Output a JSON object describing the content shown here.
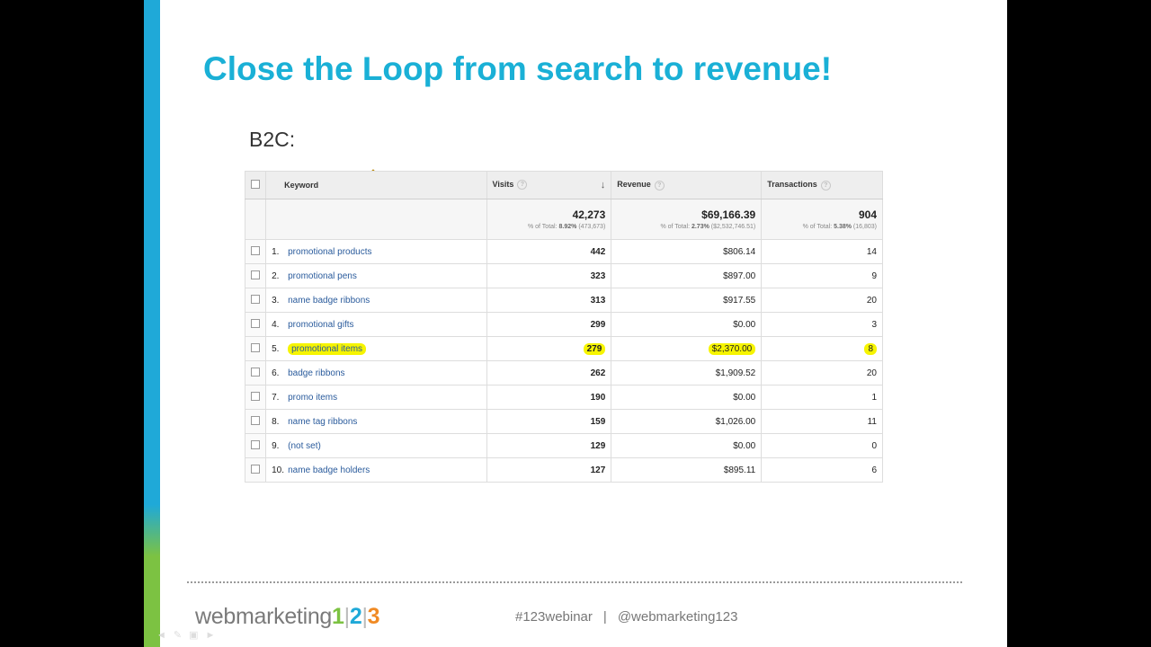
{
  "slide": {
    "title": "Close the Loop from search to revenue!",
    "subhead": "B2C:"
  },
  "table": {
    "headers": {
      "keyword": "Keyword",
      "visits": "Visits",
      "revenue": "Revenue",
      "transactions": "Transactions"
    },
    "totals": {
      "visits": "42,273",
      "visits_pct_label": "% of Total:",
      "visits_pct": "8.92%",
      "visits_of": "(473,673)",
      "revenue": "$69,166.39",
      "revenue_pct_label": "% of Total:",
      "revenue_pct": "2.73%",
      "revenue_of": "($2,532,746.51)",
      "transactions": "904",
      "transactions_pct_label": "% of Total:",
      "transactions_pct": "5.38%",
      "transactions_of": "(16,803)"
    },
    "rows": [
      {
        "idx": "1.",
        "keyword": "promotional products",
        "visits": "442",
        "revenue": "$806.14",
        "transactions": "14",
        "highlight": false
      },
      {
        "idx": "2.",
        "keyword": "promotional pens",
        "visits": "323",
        "revenue": "$897.00",
        "transactions": "9",
        "highlight": false
      },
      {
        "idx": "3.",
        "keyword": "name badge ribbons",
        "visits": "313",
        "revenue": "$917.55",
        "transactions": "20",
        "highlight": false
      },
      {
        "idx": "4.",
        "keyword": "promotional gifts",
        "visits": "299",
        "revenue": "$0.00",
        "transactions": "3",
        "highlight": false
      },
      {
        "idx": "5.",
        "keyword": "promotional items",
        "visits": "279",
        "revenue": "$2,370.00",
        "transactions": "8",
        "highlight": true
      },
      {
        "idx": "6.",
        "keyword": "badge ribbons",
        "visits": "262",
        "revenue": "$1,909.52",
        "transactions": "20",
        "highlight": false
      },
      {
        "idx": "7.",
        "keyword": "promo items",
        "visits": "190",
        "revenue": "$0.00",
        "transactions": "1",
        "highlight": false
      },
      {
        "idx": "8.",
        "keyword": "name tag ribbons",
        "visits": "159",
        "revenue": "$1,026.00",
        "transactions": "11",
        "highlight": false
      },
      {
        "idx": "9.",
        "keyword": "(not set)",
        "visits": "129",
        "revenue": "$0.00",
        "transactions": "0",
        "highlight": false
      },
      {
        "idx": "10.",
        "keyword": "name badge holders",
        "visits": "127",
        "revenue": "$895.11",
        "transactions": "6",
        "highlight": false
      }
    ]
  },
  "footer": {
    "logo_word": "webmarketing",
    "logo_n1": "1",
    "logo_n2": "2",
    "logo_n3": "3",
    "hashtag": "#123webinar",
    "separator": "|",
    "handle": "@webmarketing123"
  },
  "colors": {
    "title": "#1ab0d6",
    "accent_blue": "#1fa9d8",
    "accent_green": "#7cc242",
    "accent_orange": "#f08a24",
    "highlight": "#f6f400",
    "link": "#2a5b9c"
  },
  "icons": {
    "pencil": "pencil-icon",
    "sort": "sort-down-arrow-icon",
    "help": "help-question-icon",
    "checkbox": "checkbox-icon"
  }
}
